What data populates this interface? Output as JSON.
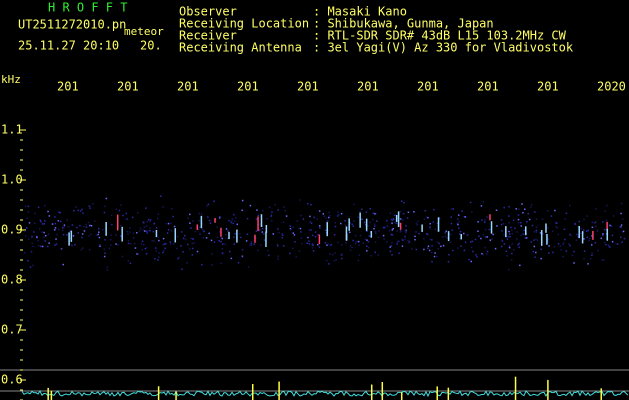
{
  "header": {
    "app": "H R O F F T",
    "file": "UT2511272010.pn",
    "tag": "meteor",
    "datetime": "25.11.27 20:10",
    "minute": "20."
  },
  "info": [
    {
      "label": "Observer",
      "value": ": Masaki Kano"
    },
    {
      "label": "Receiving Location",
      "value": ": Shibukawa, Gunma, Japan"
    },
    {
      "label": "Receiver",
      "value": ": RTL-SDR SDR# 43dB L15 103.2MHz CW"
    },
    {
      "label": "Receiving Antenna",
      "value": ": 3el Yagi(V) Az 330 for Vladivostok"
    }
  ],
  "axis": {
    "unit": "kHz",
    "y_labels": [
      "1.1",
      "1.0",
      "0.9",
      "0.8",
      "0.7",
      "0.6"
    ],
    "time_labels": [
      "201",
      "201",
      "201",
      "201",
      "201",
      "201",
      "201",
      "201",
      "201",
      "2020"
    ]
  }
}
